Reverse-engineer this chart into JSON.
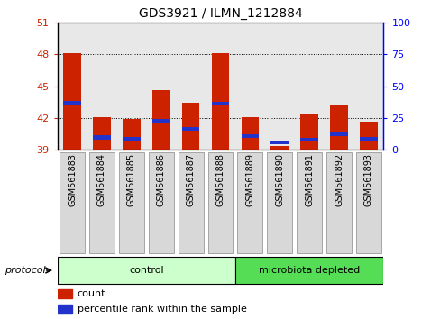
{
  "title": "GDS3921 / ILMN_1212884",
  "samples": [
    "GSM561883",
    "GSM561884",
    "GSM561885",
    "GSM561886",
    "GSM561887",
    "GSM561888",
    "GSM561889",
    "GSM561890",
    "GSM561891",
    "GSM561892",
    "GSM561893"
  ],
  "group_assignments": [
    "control",
    "control",
    "control",
    "control",
    "control",
    "control",
    "microbiota depleted",
    "microbiota depleted",
    "microbiota depleted",
    "microbiota depleted",
    "microbiota depleted"
  ],
  "count_values": [
    48.1,
    42.1,
    41.9,
    44.6,
    43.4,
    48.1,
    42.1,
    39.35,
    42.3,
    43.2,
    41.7
  ],
  "percentile_values": [
    43.3,
    40.0,
    39.9,
    41.6,
    40.8,
    43.2,
    40.1,
    39.5,
    39.8,
    40.3,
    39.9
  ],
  "percentile_heights": [
    0.35,
    0.35,
    0.35,
    0.35,
    0.35,
    0.35,
    0.35,
    0.35,
    0.35,
    0.35,
    0.35
  ],
  "baseline": 39.0,
  "ylim_left": [
    39,
    51
  ],
  "ylim_right": [
    0,
    100
  ],
  "yticks_left": [
    39,
    42,
    45,
    48,
    51
  ],
  "yticks_right": [
    0,
    25,
    50,
    75,
    100
  ],
  "bar_color": "#cc2200",
  "percentile_color": "#2233cc",
  "bar_width": 0.6,
  "group_colors": {
    "control": "#ccffcc",
    "microbiota depleted": "#55dd55"
  },
  "background_color": "#ffffff",
  "plot_bg_color": "#e8e8e8",
  "legend_count_label": "count",
  "legend_percentile_label": "percentile rank within the sample",
  "protocol_label": "protocol",
  "group_info": [
    {
      "label": "control",
      "start": 0,
      "end": 5
    },
    {
      "label": "microbiota depleted",
      "start": 6,
      "end": 10
    }
  ]
}
